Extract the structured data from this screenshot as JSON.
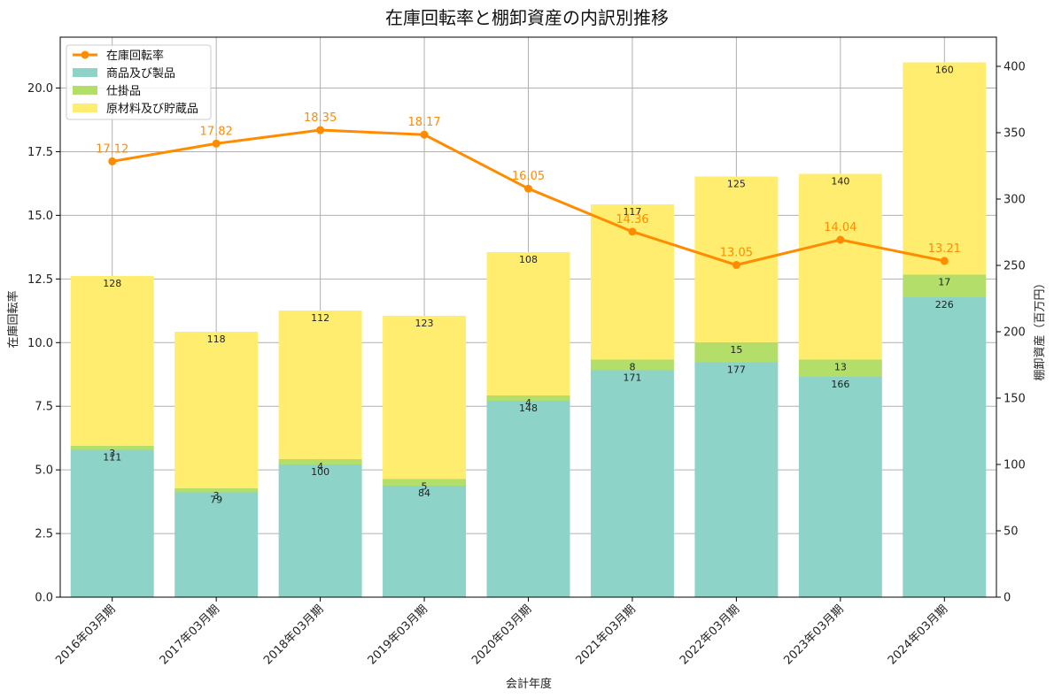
{
  "chart_data": {
    "type": "bar",
    "title": "在庫回転率と棚卸資産の内訳別推移",
    "xlabel": "会計年度",
    "ylabel_left": "在庫回転率",
    "ylabel_right": "棚卸資産（百万円）",
    "categories": [
      "2016年03月期",
      "2017年03月期",
      "2018年03月期",
      "2019年03月期",
      "2020年03月期",
      "2021年03月期",
      "2022年03月期",
      "2023年03月期",
      "2024年03月期"
    ],
    "stacked_series": [
      {
        "name": "商品及び製品",
        "axis": "right",
        "color": "#8dd3c7",
        "values": [
          111,
          79,
          100,
          84,
          148,
          171,
          177,
          166,
          226
        ]
      },
      {
        "name": "仕掛品",
        "axis": "right",
        "color": "#b3de69",
        "values": [
          3,
          3,
          4,
          5,
          4,
          8,
          15,
          13,
          17
        ]
      },
      {
        "name": "原材料及び貯蔵品",
        "axis": "right",
        "color": "#ffed6f",
        "values": [
          128,
          118,
          112,
          123,
          108,
          117,
          125,
          140,
          160
        ]
      }
    ],
    "line_series": {
      "name": "在庫回転率",
      "axis": "left",
      "color": "#ff8c00",
      "values": [
        17.12,
        17.82,
        18.35,
        18.17,
        16.05,
        14.36,
        13.05,
        14.04,
        13.21
      ]
    },
    "ylim_left": [
      0,
      22
    ],
    "yticks_left": [
      "0.0",
      "2.5",
      "5.0",
      "7.5",
      "10.0",
      "12.5",
      "15.0",
      "17.5",
      "20.0"
    ],
    "ylim_right": [
      0,
      422
    ],
    "yticks_right": [
      "0",
      "50",
      "100",
      "150",
      "200",
      "250",
      "300",
      "350",
      "400"
    ],
    "grid": true,
    "legend_position": "top-left"
  }
}
